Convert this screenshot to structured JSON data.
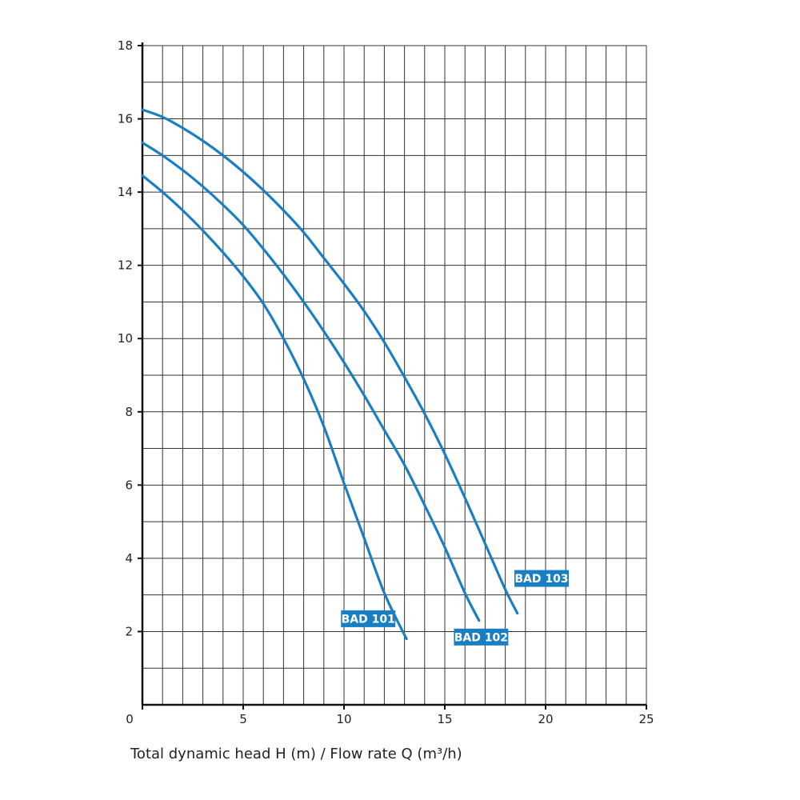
{
  "chart_data": {
    "type": "line",
    "title": "",
    "xlabel": "Total dynamic head H (m) / Flow rate Q (m³/h)",
    "ylabel": "",
    "xlim": [
      0,
      25
    ],
    "ylim": [
      0,
      18
    ],
    "x_ticks": [
      0,
      5,
      10,
      15,
      20,
      25
    ],
    "y_ticks": [
      2,
      4,
      6,
      8,
      10,
      12,
      14,
      16,
      18
    ],
    "x_minor_step": 1,
    "y_minor_step": 1,
    "grid": true,
    "legend": "inline labels near curve ends",
    "colors": {
      "series": "#1a7ec2",
      "label_bg": "#1a7ec2",
      "grid": "#333333",
      "axis": "#111111"
    },
    "series": [
      {
        "name": "BAD 101",
        "x": [
          0,
          1,
          2,
          3,
          4,
          5,
          6,
          7,
          8,
          9,
          10,
          11,
          12,
          13.1
        ],
        "y": [
          14.45,
          14.0,
          13.5,
          12.95,
          12.35,
          11.7,
          10.95,
          10.0,
          8.9,
          7.6,
          6.05,
          4.55,
          3.05,
          1.8
        ]
      },
      {
        "name": "BAD 102",
        "x": [
          0,
          1,
          2,
          3,
          4,
          5,
          6,
          7,
          8,
          9,
          10,
          11,
          12,
          13,
          14,
          15,
          16,
          16.7
        ],
        "y": [
          15.35,
          15.0,
          14.6,
          14.15,
          13.65,
          13.1,
          12.45,
          11.75,
          11.0,
          10.2,
          9.35,
          8.45,
          7.5,
          6.55,
          5.45,
          4.3,
          3.05,
          2.3
        ]
      },
      {
        "name": "BAD 103",
        "x": [
          0,
          1,
          2,
          3,
          4,
          5,
          6,
          7,
          8,
          9,
          10,
          11,
          12,
          13,
          14,
          15,
          16,
          17,
          18,
          18.6
        ],
        "y": [
          16.25,
          16.05,
          15.75,
          15.4,
          15.0,
          14.55,
          14.05,
          13.5,
          12.9,
          12.2,
          11.5,
          10.75,
          9.9,
          8.95,
          7.95,
          6.85,
          5.65,
          4.4,
          3.15,
          2.5
        ]
      }
    ],
    "series_labels": [
      {
        "text": "BAD 101",
        "x": 11.2,
        "y": 2.35
      },
      {
        "text": "BAD 102",
        "x": 16.8,
        "y": 1.85
      },
      {
        "text": "BAD 103",
        "x": 19.8,
        "y": 3.45
      }
    ]
  }
}
